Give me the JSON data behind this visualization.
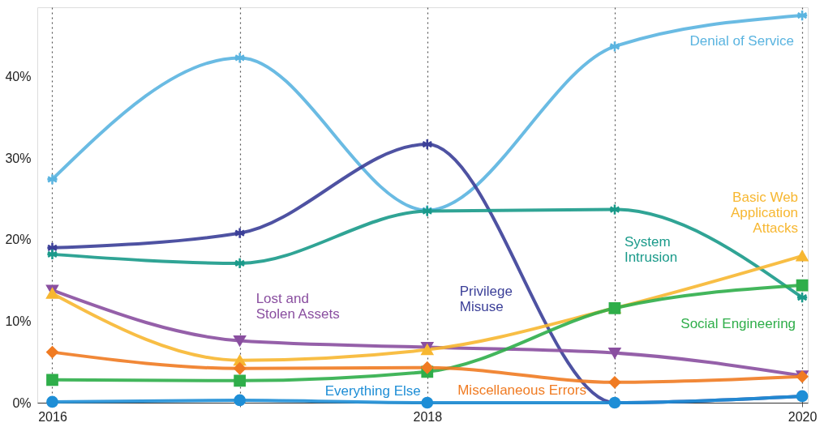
{
  "chart_data": {
    "type": "line",
    "x": [
      2016,
      2017,
      2018,
      2019,
      2020
    ],
    "xlim": [
      2015.92,
      2020.03
    ],
    "xticks": [
      2016,
      {
        "value": 2017,
        "label": null
      },
      2018,
      {
        "value": 2019,
        "label": null
      },
      2020
    ],
    "ylim": [
      0,
      48.5
    ],
    "yticks": [
      {
        "value": 0,
        "label": "0%"
      },
      {
        "value": 10,
        "label": "10%"
      },
      {
        "value": 20,
        "label": "20%"
      },
      {
        "value": 30,
        "label": "30%"
      },
      {
        "value": 40,
        "label": "40%"
      }
    ],
    "grid": "x",
    "legend": "right",
    "series": [
      {
        "name": "Denial of Service",
        "color": "#5ab4e0",
        "marker": "cross",
        "values": [
          27.4,
          42.3,
          23.6,
          43.7,
          47.5
        ]
      },
      {
        "name": "Privilege Misuse",
        "color": "#3b3f98",
        "marker": "cross",
        "values": [
          19.0,
          20.8,
          31.7,
          0,
          0.8
        ]
      },
      {
        "name": "System Intrusion",
        "color": "#1a9a8a",
        "marker": "cross",
        "values": [
          18.2,
          17.1,
          23.5,
          23.7,
          12.9
        ]
      },
      {
        "name": "Lost and Stolen Assets",
        "color": "#8a4fa0",
        "marker": "triangle-down",
        "values": [
          13.8,
          7.6,
          6.8,
          6.1,
          3.3
        ]
      },
      {
        "name": "Basic Web Application Attacks",
        "color": "#f7b731",
        "marker": "triangle",
        "values": [
          13.4,
          5.2,
          6.5,
          11.6,
          18.0
        ]
      },
      {
        "name": "Social Engineering",
        "color": "#2fae4a",
        "marker": "square",
        "values": [
          2.8,
          2.7,
          3.8,
          11.6,
          14.4
        ]
      },
      {
        "name": "Miscellaneous Errors",
        "color": "#f07b22",
        "marker": "diamond",
        "values": [
          6.2,
          4.2,
          4.3,
          2.5,
          3.2
        ]
      },
      {
        "name": "Everything Else",
        "color": "#1e8ed6",
        "marker": "circle",
        "values": [
          0.1,
          0.3,
          0,
          0,
          0.8
        ]
      }
    ]
  }
}
